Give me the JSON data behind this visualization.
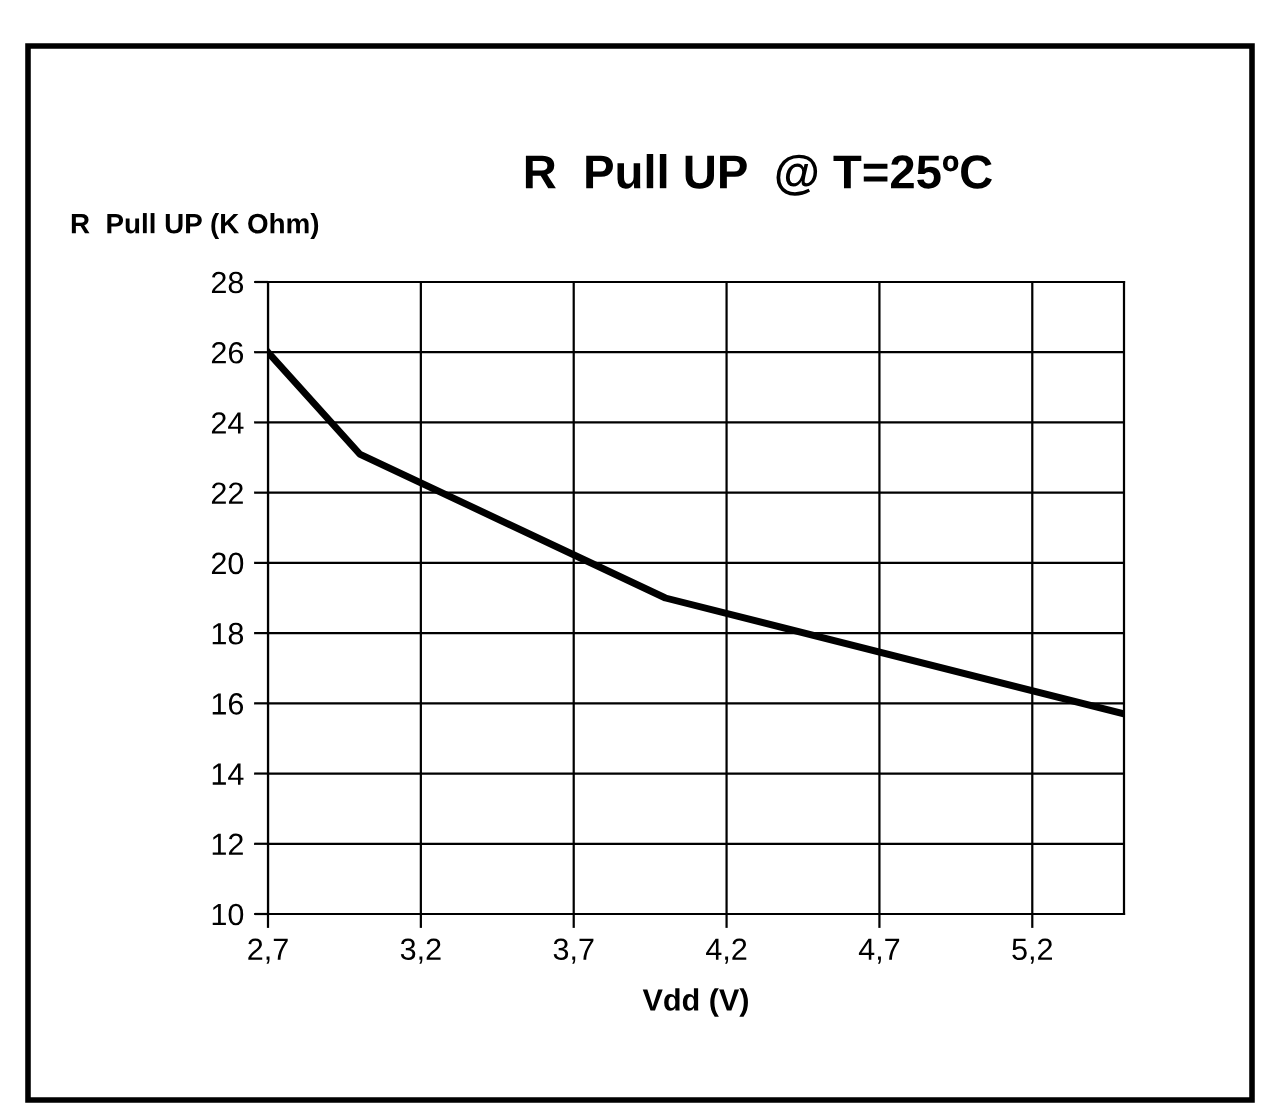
{
  "chart_data": {
    "type": "line",
    "title": "R  Pull UP  @ T=25ºC",
    "ylabel": "R  Pull UP (K Ohm)",
    "xlabel": "Vdd (V)",
    "x": [
      2.7,
      3.0,
      4.0,
      5.5
    ],
    "series": [
      {
        "color": "#000000",
        "values": [
          26,
          23.1,
          19.0,
          15.7
        ]
      }
    ],
    "xlim": [
      2.7,
      5.5
    ],
    "xticks": [
      {
        "value": 2.7,
        "label": "2,7"
      },
      {
        "value": 3.2,
        "label": "3,2"
      },
      {
        "value": 3.7,
        "label": "3,7"
      },
      {
        "value": 4.2,
        "label": "4,2"
      },
      {
        "value": 4.7,
        "label": "4,7"
      },
      {
        "value": 5.2,
        "label": "5,2"
      }
    ],
    "ylim": [
      10,
      28
    ],
    "yticks": [
      10,
      12,
      14,
      16,
      18,
      20,
      22,
      24,
      26,
      28
    ],
    "grid": true,
    "marker": "none",
    "line_style": "solid",
    "legend": false
  }
}
